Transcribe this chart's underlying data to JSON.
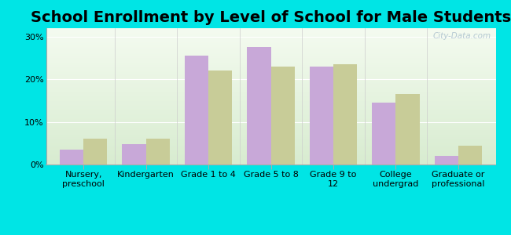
{
  "title": "School Enrollment by Level of School for Male Students",
  "categories": [
    "Nursery,\npreschool",
    "Kindergarten",
    "Grade 1 to 4",
    "Grade 5 to 8",
    "Grade 9 to\n12",
    "College\nundergrad",
    "Graduate or\nprofessional"
  ],
  "lorena_values": [
    3.5,
    4.8,
    25.5,
    27.5,
    23.0,
    14.5,
    2.0
  ],
  "texas_values": [
    6.0,
    6.0,
    22.0,
    23.0,
    23.5,
    16.5,
    4.5
  ],
  "lorena_color": "#c8a8d8",
  "texas_color": "#c8cc98",
  "background_color": "#00e5e5",
  "plot_bg_top": "#d8ecd0",
  "plot_bg_bottom": "#f4fbf0",
  "ylim": [
    0,
    32
  ],
  "yticks": [
    0,
    10,
    20,
    30
  ],
  "ytick_labels": [
    "0%",
    "10%",
    "20%",
    "30%"
  ],
  "title_fontsize": 14,
  "tick_fontsize": 8,
  "legend_fontsize": 10,
  "bar_width": 0.38,
  "watermark": "City-Data.com"
}
